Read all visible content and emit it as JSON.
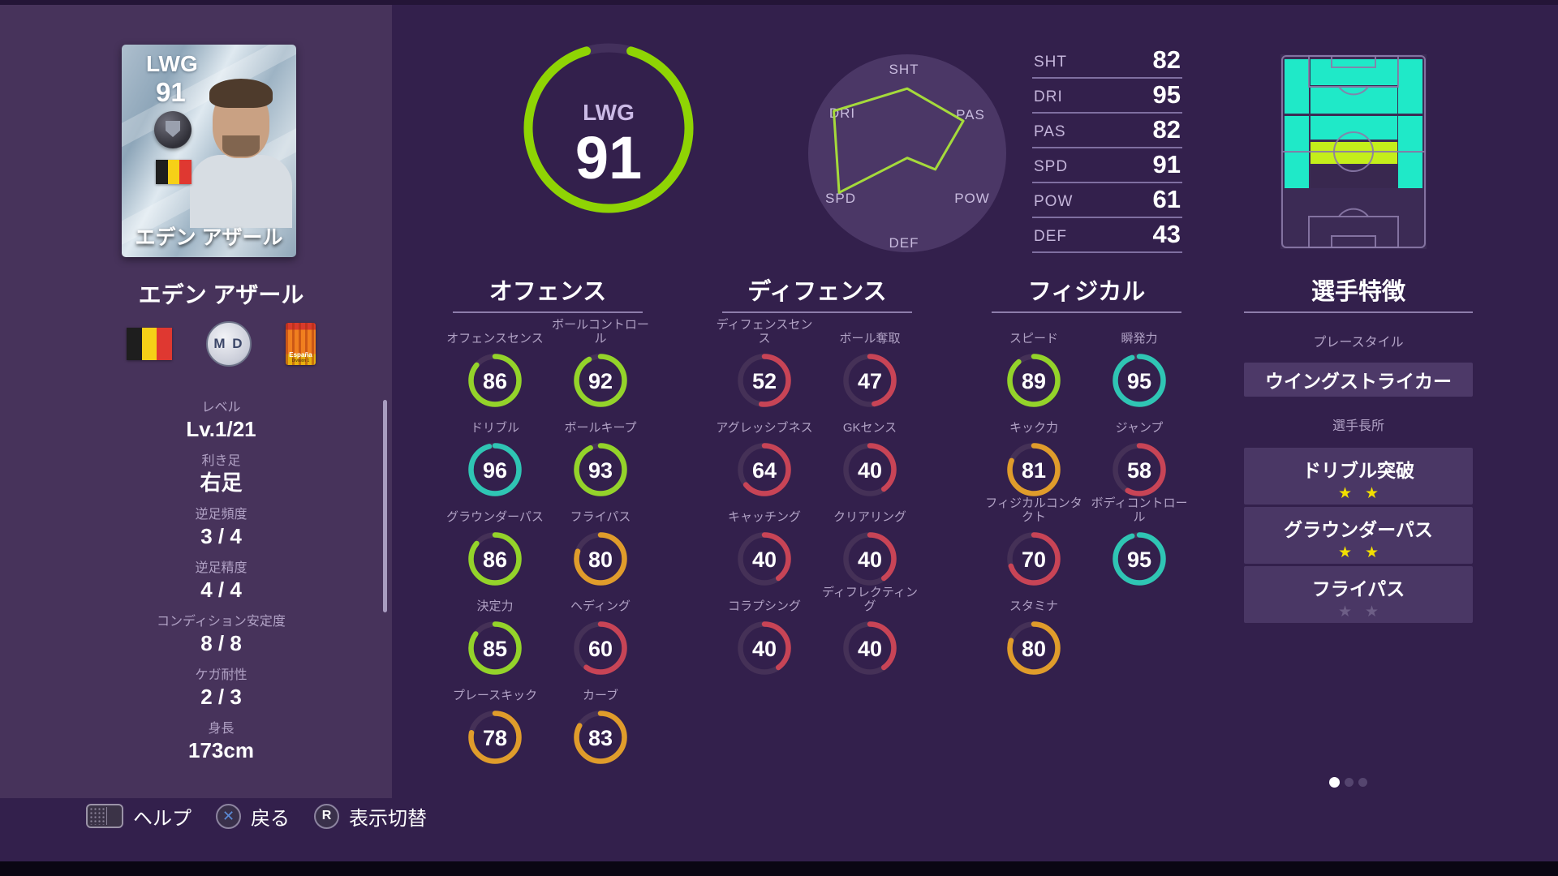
{
  "palette": {
    "green": "#94d32a",
    "teal": "#2fc5b4",
    "orange": "#e09c2b",
    "red": "#c84456",
    "track": "#453157",
    "big_track": "#43305c",
    "big_green": "#8fd404",
    "accent_line": "#8d7dab",
    "label": "#b1a2c5",
    "radar_line": "#a5da3b",
    "radar_fill": "#4b3766",
    "field_cyan": "#1fe9c8",
    "field_yellow": "#c4ee1b",
    "field_line": "#8b7aa8",
    "star_on": "#f2df00"
  },
  "player_card": {
    "position": "LWG",
    "rating": "91",
    "name": "エデン アザール",
    "nationality": "Belgium"
  },
  "sidebar": {
    "name": "エデン アザール",
    "club_badge_text": "M D",
    "league_badge_text": "España",
    "league_badge_subtext": "División 1",
    "attributes": [
      {
        "label": "レベル",
        "value": "Lv.1/21"
      },
      {
        "label": "利き足",
        "value": "右足"
      },
      {
        "label": "逆足頻度",
        "value": "3 / 4"
      },
      {
        "label": "逆足精度",
        "value": "4 / 4"
      },
      {
        "label": "コンディション安定度",
        "value": "8 / 8"
      },
      {
        "label": "ケガ耐性",
        "value": "2 / 3"
      },
      {
        "label": "身長",
        "value": "173cm"
      }
    ]
  },
  "overall": {
    "position": "LWG",
    "rating": 91
  },
  "chart_data": {
    "type": "radar",
    "categories": [
      "SHT",
      "PAS",
      "POW",
      "DEF",
      "SPD",
      "DRI"
    ],
    "values": [
      82,
      82,
      61,
      43,
      91,
      95
    ],
    "scale_min": 40,
    "scale_max": 100
  },
  "summary_stats": [
    {
      "label": "SHT",
      "value": 82
    },
    {
      "label": "DRI",
      "value": 95
    },
    {
      "label": "PAS",
      "value": 82
    },
    {
      "label": "SPD",
      "value": 91
    },
    {
      "label": "POW",
      "value": 61
    },
    {
      "label": "DEF",
      "value": 43
    }
  ],
  "stat_columns": [
    {
      "title": "オフェンス",
      "stats": [
        {
          "label": "オフェンスセンス",
          "value": 86
        },
        {
          "label": "ボールコントロール",
          "value": 92
        },
        {
          "label": "ドリブル",
          "value": 96
        },
        {
          "label": "ボールキープ",
          "value": 93
        },
        {
          "label": "グラウンダーパス",
          "value": 86
        },
        {
          "label": "フライパス",
          "value": 80
        },
        {
          "label": "決定力",
          "value": 85
        },
        {
          "label": "ヘディング",
          "value": 60
        },
        {
          "label": "プレースキック",
          "value": 78
        },
        {
          "label": "カーブ",
          "value": 83
        }
      ]
    },
    {
      "title": "ディフェンス",
      "stats": [
        {
          "label": "ディフェンスセンス",
          "value": 52
        },
        {
          "label": "ボール奪取",
          "value": 47
        },
        {
          "label": "アグレッシブネス",
          "value": 64
        },
        {
          "label": "GKセンス",
          "value": 40
        },
        {
          "label": "キャッチング",
          "value": 40
        },
        {
          "label": "クリアリング",
          "value": 40
        },
        {
          "label": "コラプシング",
          "value": 40
        },
        {
          "label": "ディフレクティング",
          "value": 40
        }
      ]
    },
    {
      "title": "フィジカル",
      "stats": [
        {
          "label": "スピード",
          "value": 89
        },
        {
          "label": "瞬発力",
          "value": 95
        },
        {
          "label": "キック力",
          "value": 81
        },
        {
          "label": "ジャンプ",
          "value": 58
        },
        {
          "label": "フィジカルコンタクト",
          "value": 70
        },
        {
          "label": "ボディコントロール",
          "value": 95
        },
        {
          "label": "スタミナ",
          "value": 80
        }
      ]
    }
  ],
  "traits": {
    "title": "選手特徴",
    "playstyle_label": "プレースタイル",
    "playstyle": "ウイングストライカー",
    "strengths_label": "選手長所",
    "strengths": [
      {
        "label": "ドリブル突破",
        "stars": 2,
        "active": true
      },
      {
        "label": "グラウンダーパス",
        "stars": 2,
        "active": true
      },
      {
        "label": "フライパス",
        "stars": 2,
        "active": false
      }
    ]
  },
  "pagination": {
    "total": 3,
    "active": 0
  },
  "bottom_bar": {
    "help": "ヘルプ",
    "back": "戻る",
    "toggle": "表示切替",
    "back_button": "✕",
    "toggle_button": "R"
  }
}
